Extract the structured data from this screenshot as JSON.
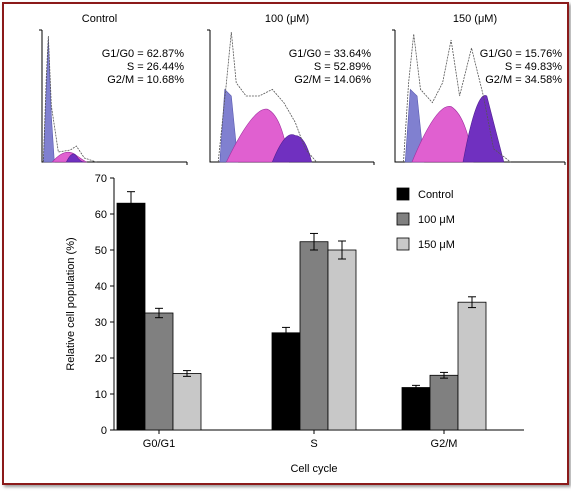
{
  "chart_data": [
    {
      "type": "area",
      "panels": [
        {
          "title": "Control",
          "stats": [
            {
              "label": "G1/G0",
              "value": "62.87%"
            },
            {
              "label": "S",
              "value": "26.44%"
            },
            {
              "label": "G2/M",
              "value": "10.68%"
            }
          ]
        },
        {
          "title": "100 (μM)",
          "stats": [
            {
              "label": "G1/G0",
              "value": "33.64%"
            },
            {
              "label": "S",
              "value": "52.89%"
            },
            {
              "label": "G2/M",
              "value": "14.06%"
            }
          ]
        },
        {
          "title": "150 (μM)",
          "stats": [
            {
              "label": "G1/G0",
              "value": "15.76%"
            },
            {
              "label": "S",
              "value": "49.83%"
            },
            {
              "label": "G2/M",
              "value": "34.58%"
            }
          ]
        }
      ]
    },
    {
      "type": "bar",
      "categories": [
        "G0/G1",
        "S",
        "G2/M"
      ],
      "series": [
        {
          "name": "Control",
          "color": "#000000",
          "values": [
            63,
            27,
            11.8
          ],
          "errors": [
            3.2,
            1.5,
            0.6
          ]
        },
        {
          "name": "100 μM",
          "color": "#808080",
          "values": [
            32.5,
            52.3,
            15.2
          ],
          "errors": [
            1.3,
            2.3,
            0.8
          ]
        },
        {
          "name": "150 μM",
          "color": "#c8c8c8",
          "values": [
            15.7,
            50,
            35.5
          ],
          "errors": [
            0.8,
            2.5,
            1.5
          ]
        }
      ],
      "xlabel": "Cell cycle",
      "ylabel": "Relative cell population (%)",
      "ylim": [
        0,
        70
      ],
      "yticks": [
        0,
        10,
        20,
        30,
        40,
        50,
        60,
        70
      ],
      "legend": "top-right",
      "grid": false
    }
  ]
}
